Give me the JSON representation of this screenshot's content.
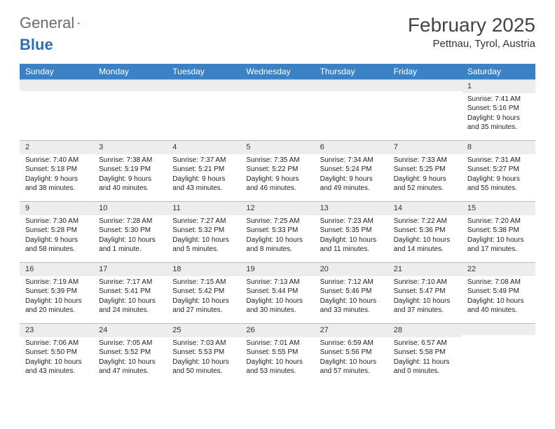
{
  "brand": {
    "part1": "General",
    "part2": "Blue"
  },
  "title": "February 2025",
  "location": "Pettnau, Tyrol, Austria",
  "colors": {
    "header_bg": "#3b82c4",
    "header_fg": "#ffffff",
    "stripe": "#ededed",
    "rule": "#bcbcbc",
    "brand_gray": "#6b6b6b",
    "brand_blue": "#2e6fb0"
  },
  "day_names": [
    "Sunday",
    "Monday",
    "Tuesday",
    "Wednesday",
    "Thursday",
    "Friday",
    "Saturday"
  ],
  "weeks": [
    [
      {
        "n": "",
        "sr": "",
        "ss": "",
        "dl": ""
      },
      {
        "n": "",
        "sr": "",
        "ss": "",
        "dl": ""
      },
      {
        "n": "",
        "sr": "",
        "ss": "",
        "dl": ""
      },
      {
        "n": "",
        "sr": "",
        "ss": "",
        "dl": ""
      },
      {
        "n": "",
        "sr": "",
        "ss": "",
        "dl": ""
      },
      {
        "n": "",
        "sr": "",
        "ss": "",
        "dl": ""
      },
      {
        "n": "1",
        "sr": "Sunrise: 7:41 AM",
        "ss": "Sunset: 5:16 PM",
        "dl": "Daylight: 9 hours and 35 minutes."
      }
    ],
    [
      {
        "n": "2",
        "sr": "Sunrise: 7:40 AM",
        "ss": "Sunset: 5:18 PM",
        "dl": "Daylight: 9 hours and 38 minutes."
      },
      {
        "n": "3",
        "sr": "Sunrise: 7:38 AM",
        "ss": "Sunset: 5:19 PM",
        "dl": "Daylight: 9 hours and 40 minutes."
      },
      {
        "n": "4",
        "sr": "Sunrise: 7:37 AM",
        "ss": "Sunset: 5:21 PM",
        "dl": "Daylight: 9 hours and 43 minutes."
      },
      {
        "n": "5",
        "sr": "Sunrise: 7:35 AM",
        "ss": "Sunset: 5:22 PM",
        "dl": "Daylight: 9 hours and 46 minutes."
      },
      {
        "n": "6",
        "sr": "Sunrise: 7:34 AM",
        "ss": "Sunset: 5:24 PM",
        "dl": "Daylight: 9 hours and 49 minutes."
      },
      {
        "n": "7",
        "sr": "Sunrise: 7:33 AM",
        "ss": "Sunset: 5:25 PM",
        "dl": "Daylight: 9 hours and 52 minutes."
      },
      {
        "n": "8",
        "sr": "Sunrise: 7:31 AM",
        "ss": "Sunset: 5:27 PM",
        "dl": "Daylight: 9 hours and 55 minutes."
      }
    ],
    [
      {
        "n": "9",
        "sr": "Sunrise: 7:30 AM",
        "ss": "Sunset: 5:28 PM",
        "dl": "Daylight: 9 hours and 58 minutes."
      },
      {
        "n": "10",
        "sr": "Sunrise: 7:28 AM",
        "ss": "Sunset: 5:30 PM",
        "dl": "Daylight: 10 hours and 1 minute."
      },
      {
        "n": "11",
        "sr": "Sunrise: 7:27 AM",
        "ss": "Sunset: 5:32 PM",
        "dl": "Daylight: 10 hours and 5 minutes."
      },
      {
        "n": "12",
        "sr": "Sunrise: 7:25 AM",
        "ss": "Sunset: 5:33 PM",
        "dl": "Daylight: 10 hours and 8 minutes."
      },
      {
        "n": "13",
        "sr": "Sunrise: 7:23 AM",
        "ss": "Sunset: 5:35 PM",
        "dl": "Daylight: 10 hours and 11 minutes."
      },
      {
        "n": "14",
        "sr": "Sunrise: 7:22 AM",
        "ss": "Sunset: 5:36 PM",
        "dl": "Daylight: 10 hours and 14 minutes."
      },
      {
        "n": "15",
        "sr": "Sunrise: 7:20 AM",
        "ss": "Sunset: 5:38 PM",
        "dl": "Daylight: 10 hours and 17 minutes."
      }
    ],
    [
      {
        "n": "16",
        "sr": "Sunrise: 7:19 AM",
        "ss": "Sunset: 5:39 PM",
        "dl": "Daylight: 10 hours and 20 minutes."
      },
      {
        "n": "17",
        "sr": "Sunrise: 7:17 AM",
        "ss": "Sunset: 5:41 PM",
        "dl": "Daylight: 10 hours and 24 minutes."
      },
      {
        "n": "18",
        "sr": "Sunrise: 7:15 AM",
        "ss": "Sunset: 5:42 PM",
        "dl": "Daylight: 10 hours and 27 minutes."
      },
      {
        "n": "19",
        "sr": "Sunrise: 7:13 AM",
        "ss": "Sunset: 5:44 PM",
        "dl": "Daylight: 10 hours and 30 minutes."
      },
      {
        "n": "20",
        "sr": "Sunrise: 7:12 AM",
        "ss": "Sunset: 5:46 PM",
        "dl": "Daylight: 10 hours and 33 minutes."
      },
      {
        "n": "21",
        "sr": "Sunrise: 7:10 AM",
        "ss": "Sunset: 5:47 PM",
        "dl": "Daylight: 10 hours and 37 minutes."
      },
      {
        "n": "22",
        "sr": "Sunrise: 7:08 AM",
        "ss": "Sunset: 5:49 PM",
        "dl": "Daylight: 10 hours and 40 minutes."
      }
    ],
    [
      {
        "n": "23",
        "sr": "Sunrise: 7:06 AM",
        "ss": "Sunset: 5:50 PM",
        "dl": "Daylight: 10 hours and 43 minutes."
      },
      {
        "n": "24",
        "sr": "Sunrise: 7:05 AM",
        "ss": "Sunset: 5:52 PM",
        "dl": "Daylight: 10 hours and 47 minutes."
      },
      {
        "n": "25",
        "sr": "Sunrise: 7:03 AM",
        "ss": "Sunset: 5:53 PM",
        "dl": "Daylight: 10 hours and 50 minutes."
      },
      {
        "n": "26",
        "sr": "Sunrise: 7:01 AM",
        "ss": "Sunset: 5:55 PM",
        "dl": "Daylight: 10 hours and 53 minutes."
      },
      {
        "n": "27",
        "sr": "Sunrise: 6:59 AM",
        "ss": "Sunset: 5:56 PM",
        "dl": "Daylight: 10 hours and 57 minutes."
      },
      {
        "n": "28",
        "sr": "Sunrise: 6:57 AM",
        "ss": "Sunset: 5:58 PM",
        "dl": "Daylight: 11 hours and 0 minutes."
      },
      {
        "n": "",
        "sr": "",
        "ss": "",
        "dl": ""
      }
    ]
  ]
}
